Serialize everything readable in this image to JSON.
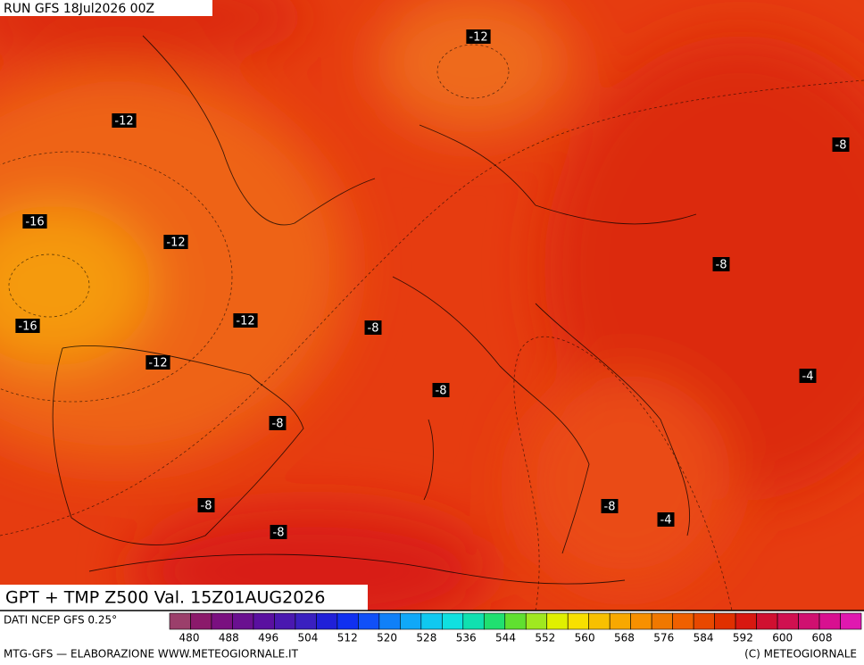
{
  "header": {
    "run": "RUN GFS 18Jul2026 00Z"
  },
  "map": {
    "contour_labels": [
      -12,
      -12,
      -8,
      -16,
      -12,
      -8,
      -16,
      -12,
      -8,
      -12,
      -4,
      -8,
      -8,
      -8,
      -8,
      -4,
      -8
    ]
  },
  "footer": {
    "title": "GPT + TMP Z500 Val. 15Z01AUG2026",
    "source": "DATI NCEP GFS 0.25°",
    "credit": "MTG-GFS — ELABORAZIONE WWW.METEOGIORNALE.IT",
    "copyright": "(C) METEOGIORNALE"
  },
  "colorbar": {
    "ticks": [
      480,
      488,
      496,
      504,
      512,
      520,
      528,
      536,
      544,
      552,
      560,
      568,
      576,
      584,
      592,
      600,
      608
    ],
    "colors": [
      "#9b3f6b",
      "#8b1a6b",
      "#7a1080",
      "#6a1090",
      "#5a10a0",
      "#4a18b0",
      "#3a20c0",
      "#2020d8",
      "#1030f0",
      "#1050f8",
      "#1080f8",
      "#10a8f8",
      "#10c8f0",
      "#10e0e0",
      "#10e0b0",
      "#20e070",
      "#60e030",
      "#a0e820",
      "#e0f000",
      "#f8e000",
      "#f8c000",
      "#f8a800",
      "#f89000",
      "#f07800",
      "#f06000",
      "#e84800",
      "#e03000",
      "#d81810",
      "#d01030",
      "#d01050",
      "#d01070",
      "#d81090",
      "#e018b0"
    ]
  }
}
